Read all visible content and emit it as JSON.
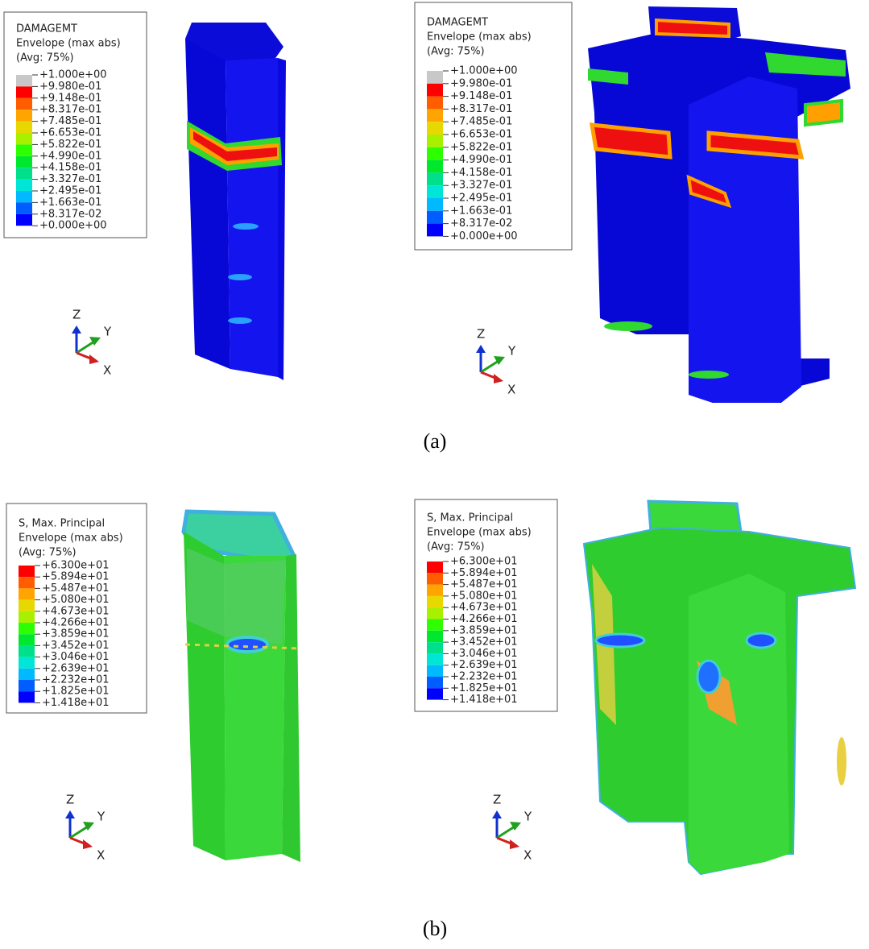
{
  "panels": [
    {
      "legend": {
        "title": [
          "DAMAGEMT",
          "Envelope (max abs)",
          "(Avg: 75%)"
        ],
        "labels": [
          "+1.000e+00",
          "+9.980e-01",
          "+9.148e-01",
          "+8.317e-01",
          "+7.485e-01",
          "+6.653e-01",
          "+5.822e-01",
          "+4.990e-01",
          "+4.158e-01",
          "+3.327e-01",
          "+2.495e-01",
          "+1.663e-01",
          "+8.317e-02",
          "+0.000e+00"
        ]
      },
      "axes": {
        "z": "Z",
        "y": "Y",
        "x": "X"
      }
    },
    {
      "legend": {
        "title": [
          "DAMAGEMT",
          "Envelope (max abs)",
          "(Avg: 75%)"
        ],
        "labels": [
          "+1.000e+00",
          "+9.980e-01",
          "+9.148e-01",
          "+8.317e-01",
          "+7.485e-01",
          "+6.653e-01",
          "+5.822e-01",
          "+4.990e-01",
          "+4.158e-01",
          "+3.327e-01",
          "+2.495e-01",
          "+1.663e-01",
          "+8.317e-02",
          "+0.000e+00"
        ]
      },
      "axes": {
        "z": "Z",
        "y": "Y",
        "x": "X"
      }
    },
    {
      "legend": {
        "title": [
          "S, Max. Principal",
          "Envelope (max abs)",
          "(Avg: 75%)"
        ],
        "labels": [
          "+6.300e+01",
          "+5.894e+01",
          "+5.487e+01",
          "+5.080e+01",
          "+4.673e+01",
          "+4.266e+01",
          "+3.859e+01",
          "+3.452e+01",
          "+3.046e+01",
          "+2.639e+01",
          "+2.232e+01",
          "+1.825e+01",
          "+1.418e+01"
        ]
      },
      "axes": {
        "z": "Z",
        "y": "Y",
        "x": "X"
      }
    },
    {
      "legend": {
        "title": [
          "S, Max. Principal",
          "Envelope (max abs)",
          "(Avg: 75%)"
        ],
        "labels": [
          "+6.300e+01",
          "+5.894e+01",
          "+5.487e+01",
          "+5.080e+01",
          "+4.673e+01",
          "+4.266e+01",
          "+3.859e+01",
          "+3.452e+01",
          "+3.046e+01",
          "+2.639e+01",
          "+2.232e+01",
          "+1.825e+01",
          "+1.418e+01"
        ]
      },
      "axes": {
        "z": "Z",
        "y": "Y",
        "x": "X"
      }
    }
  ],
  "captions": [
    "(a)",
    "(b)"
  ]
}
